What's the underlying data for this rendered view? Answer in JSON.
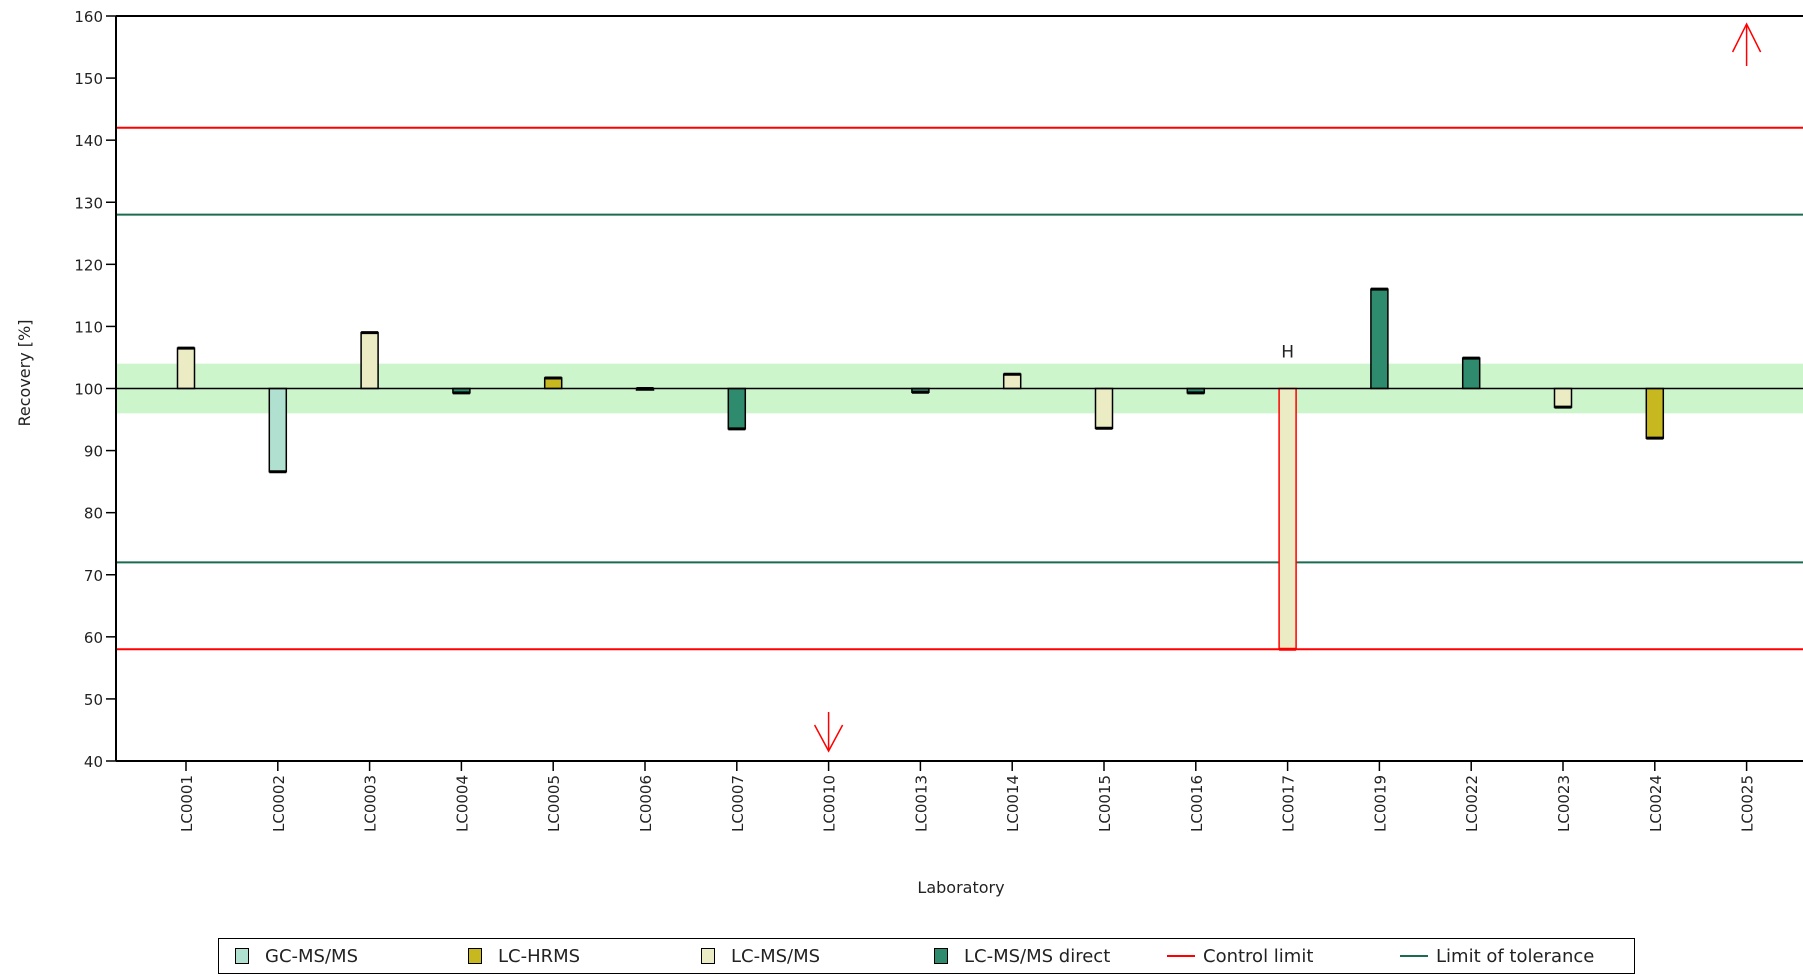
{
  "chart_data": {
    "type": "bar",
    "xlabel": "Laboratory",
    "ylabel": "Recovery [%]",
    "ylim": [
      40,
      160
    ],
    "yticks": [
      40,
      50,
      60,
      70,
      80,
      90,
      100,
      110,
      120,
      130,
      140,
      150,
      160
    ],
    "baseline": 100,
    "band": [
      96,
      104
    ],
    "control_limits": [
      142,
      58
    ],
    "tolerance_limits": [
      128,
      72
    ],
    "categories": [
      "LC0001",
      "LC0002",
      "LC0003",
      "LC0004",
      "LC0005",
      "LC0006",
      "LC0007",
      "LC0010",
      "LC0013",
      "LC0014",
      "LC0015",
      "LC0016",
      "LC0017",
      "LC0019",
      "LC0022",
      "LC0023",
      "LC0024",
      "LC0025"
    ],
    "values": [
      106.5,
      86.6,
      109,
      99.3,
      101.7,
      100,
      93.5,
      null,
      99.4,
      102.3,
      93.6,
      99.3,
      58,
      116,
      104.9,
      97,
      92,
      null
    ],
    "methods": [
      "LC-MS/MS",
      "GC-MS/MS",
      "LC-MS/MS",
      "LC-MS/MS direct",
      "LC-HRMS",
      "LC-MS/MS",
      "LC-MS/MS direct",
      "",
      "LC-MS/MS direct",
      "LC-MS/MS",
      "LC-MS/MS",
      "LC-MS/MS direct",
      "LC-MS/MS",
      "LC-MS/MS direct",
      "LC-MS/MS direct",
      "LC-MS/MS",
      "LC-HRMS",
      ""
    ],
    "flags": {
      "LC0017": "H"
    },
    "off_scale": [
      {
        "lab": "LC0010",
        "direction": "down"
      },
      {
        "lab": "LC0025",
        "direction": "up"
      }
    ],
    "grid": false,
    "legend_position": "bottom"
  },
  "legend": {
    "items": [
      {
        "label": "GC-MS/MS",
        "kind": "box",
        "color": "#b0e0d0"
      },
      {
        "label": "LC-HRMS",
        "kind": "box",
        "color": "#c8b820"
      },
      {
        "label": "LC-MS/MS",
        "kind": "box",
        "color": "#ececc4"
      },
      {
        "label": "LC-MS/MS direct",
        "kind": "box",
        "color": "#2e8b6e"
      },
      {
        "label": "Control limit",
        "kind": "line",
        "color": "#ff0000"
      },
      {
        "label": "Limit of tolerance",
        "kind": "line",
        "color": "#1a6b50"
      }
    ]
  },
  "colors": {
    "GC-MS/MS": "#b0e0d0",
    "LC-HRMS": "#c8b820",
    "LC-MS/MS": "#ececc4",
    "LC-MS/MS direct": "#2e8b6e",
    "control": "#ff0000",
    "tolerance": "#1a6b50",
    "band": "#ccf5cc",
    "flagged_outline": "#ff0000"
  }
}
